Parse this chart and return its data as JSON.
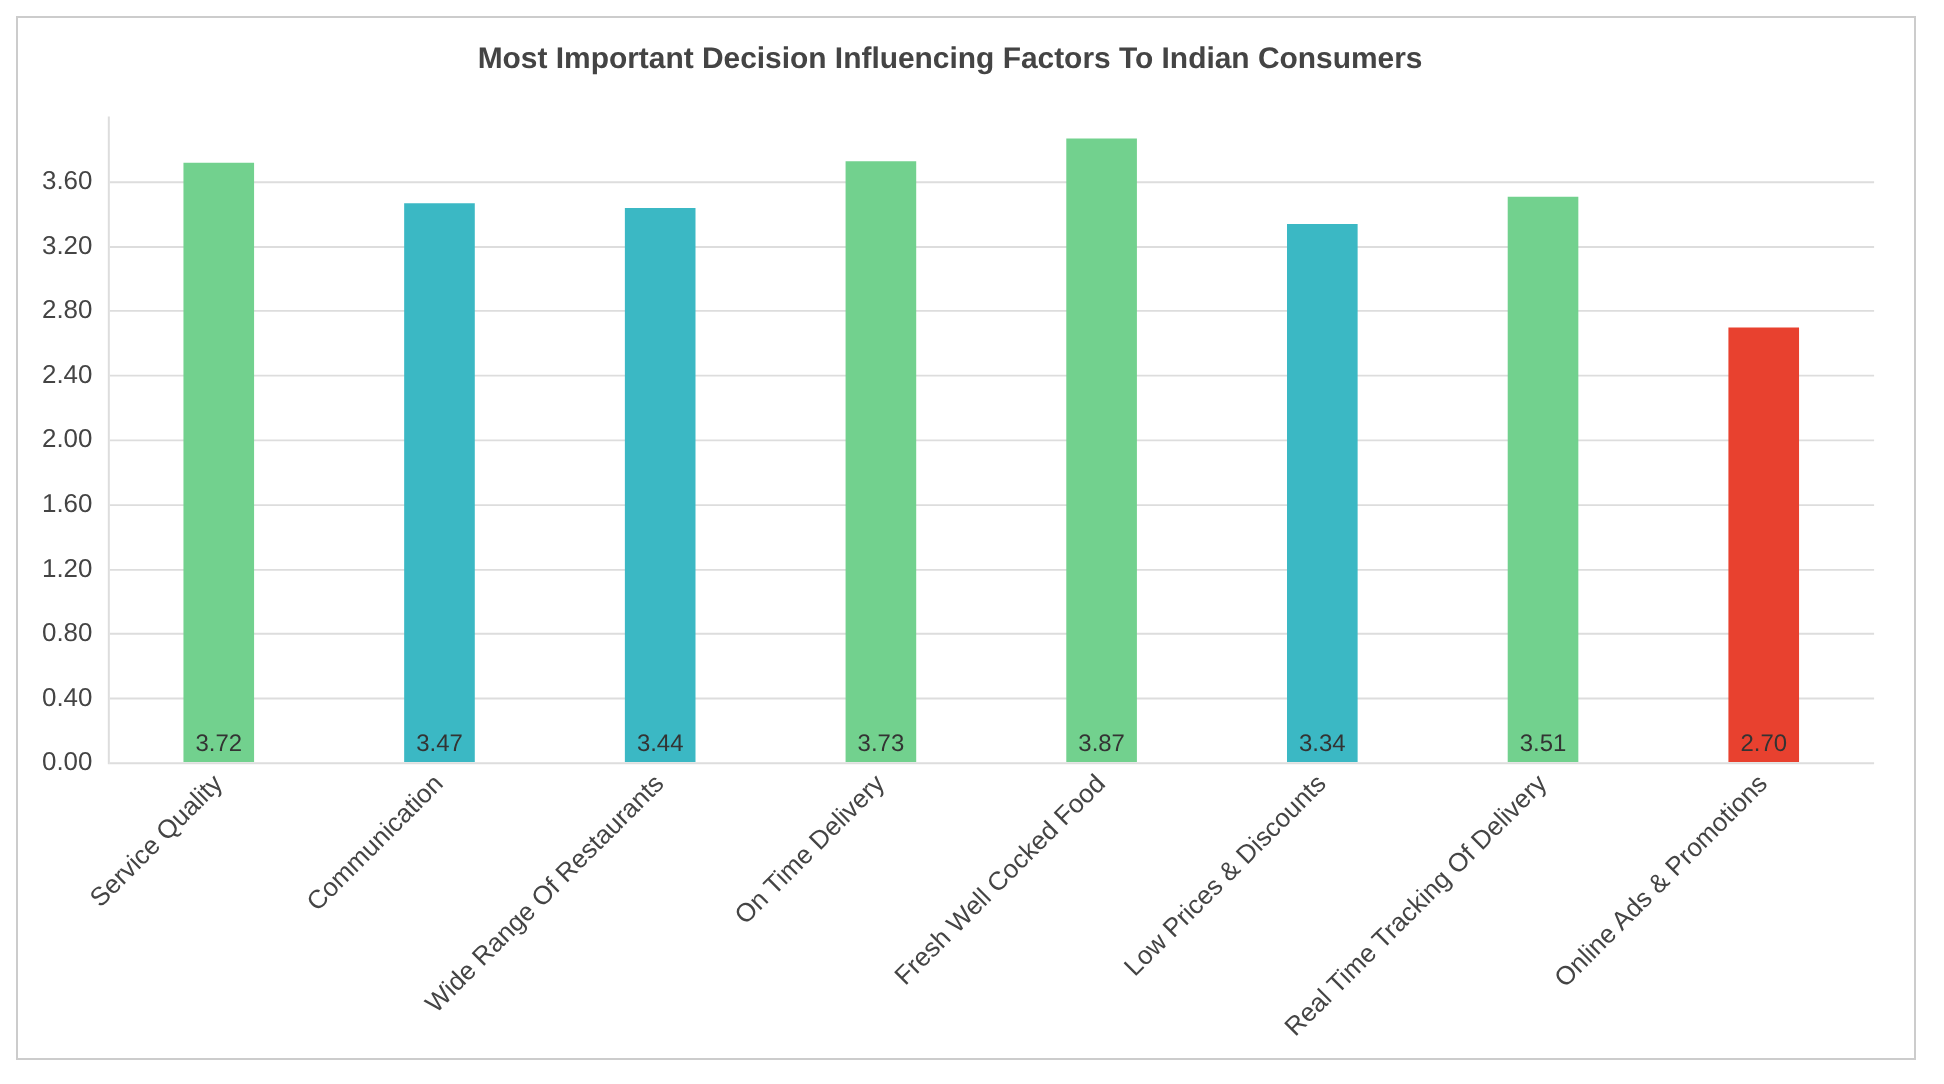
{
  "chart_data": {
    "type": "bar",
    "title": "Most Important Decision Influencing Factors To Indian Consumers",
    "categories": [
      "Service Quality",
      "Communication",
      "Wide Range Of Restaurants",
      "On Time Delivery",
      "Fresh Well Cocked Food",
      "Low Prices & Discounts",
      "Real Time Tracking Of Delivery",
      "Online Ads & Promotions"
    ],
    "values": [
      3.72,
      3.47,
      3.44,
      3.73,
      3.87,
      3.34,
      3.51,
      2.7
    ],
    "colors": [
      "#72d18e",
      "#3bb8c4",
      "#3bb8c4",
      "#72d18e",
      "#72d18e",
      "#3bb8c4",
      "#72d18e",
      "#e8412f"
    ],
    "value_labels": [
      "3.72",
      "3.47",
      "3.44",
      "3.73",
      "3.87",
      "3.34",
      "3.51",
      "2.70"
    ],
    "ylim": [
      0,
      4
    ],
    "yticks": [
      {
        "value": 0,
        "label": "0.00"
      },
      {
        "value": 0.4,
        "label": "0.40"
      },
      {
        "value": 0.8,
        "label": "0.80"
      },
      {
        "value": 1.2,
        "label": "1.20"
      },
      {
        "value": 1.6,
        "label": "1.60"
      },
      {
        "value": 2,
        "label": "2.00"
      },
      {
        "value": 2.4,
        "label": "2.40"
      },
      {
        "value": 2.8,
        "label": "2.80"
      },
      {
        "value": 3.2,
        "label": "3.20"
      },
      {
        "value": 3.6,
        "label": "3.60"
      }
    ],
    "grid": "y",
    "legend": false
  }
}
